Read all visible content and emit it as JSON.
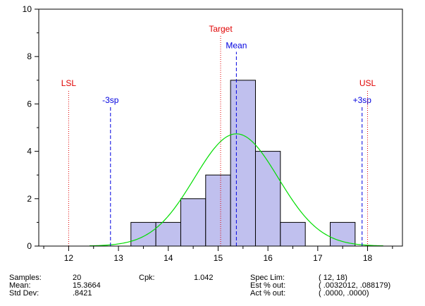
{
  "chart_data": {
    "type": "bar",
    "title": "",
    "xlabel": "",
    "ylabel": "",
    "xlim": [
      11.4,
      18.7
    ],
    "ylim": [
      0,
      10
    ],
    "x_ticks": [
      12,
      13,
      14,
      15,
      16,
      17,
      18
    ],
    "y_ticks": [
      0,
      2,
      4,
      6,
      8,
      10
    ],
    "bin_width": 0.5,
    "bins": [
      {
        "left": 13.25,
        "count": 1
      },
      {
        "left": 13.75,
        "count": 1
      },
      {
        "left": 14.25,
        "count": 2
      },
      {
        "left": 14.75,
        "count": 3
      },
      {
        "left": 15.25,
        "count": 7
      },
      {
        "left": 15.75,
        "count": 4
      },
      {
        "left": 16.25,
        "count": 1
      },
      {
        "left": 16.75,
        "count": 0
      },
      {
        "left": 17.25,
        "count": 1
      }
    ],
    "bar_color": "#c0c0ee",
    "curve": {
      "mean": 15.3664,
      "sd": 0.8421,
      "n": 20,
      "color": "#00dd00"
    },
    "reference_lines": [
      {
        "label": "LSL",
        "x": 12.0,
        "top": 6.6,
        "color": "#e00000",
        "dash": "dot"
      },
      {
        "label": "-3sp",
        "x": 12.84,
        "top": 5.9,
        "color": "#0000e0",
        "dash": "dash"
      },
      {
        "label": "Target",
        "x": 15.05,
        "top": 8.9,
        "color": "#e00000",
        "dash": "dot"
      },
      {
        "label": "Mean",
        "x": 15.3664,
        "top": 8.2,
        "color": "#0000e0",
        "dash": "dash"
      },
      {
        "label": "+3sp",
        "x": 17.89,
        "top": 5.9,
        "color": "#0000e0",
        "dash": "dash"
      },
      {
        "label": "USL",
        "x": 18.0,
        "top": 6.6,
        "color": "#e00000",
        "dash": "dot"
      }
    ]
  },
  "stats": {
    "samples_label": "Samples:",
    "samples_value": "20",
    "mean_label": "Mean:",
    "mean_value": "15.3664",
    "stddev_label": "Std Dev:",
    "stddev_value": ".8421",
    "cpk_label": "Cpk:",
    "cpk_value": "1.042",
    "speclim_label": "Spec Lim:",
    "speclim_value": "( 12,   18)",
    "est_label": "Est % out:",
    "est_value": "( .0032012,   .088179)",
    "act_label": "Act % out:",
    "act_value": "( .0000,   .0000)"
  }
}
